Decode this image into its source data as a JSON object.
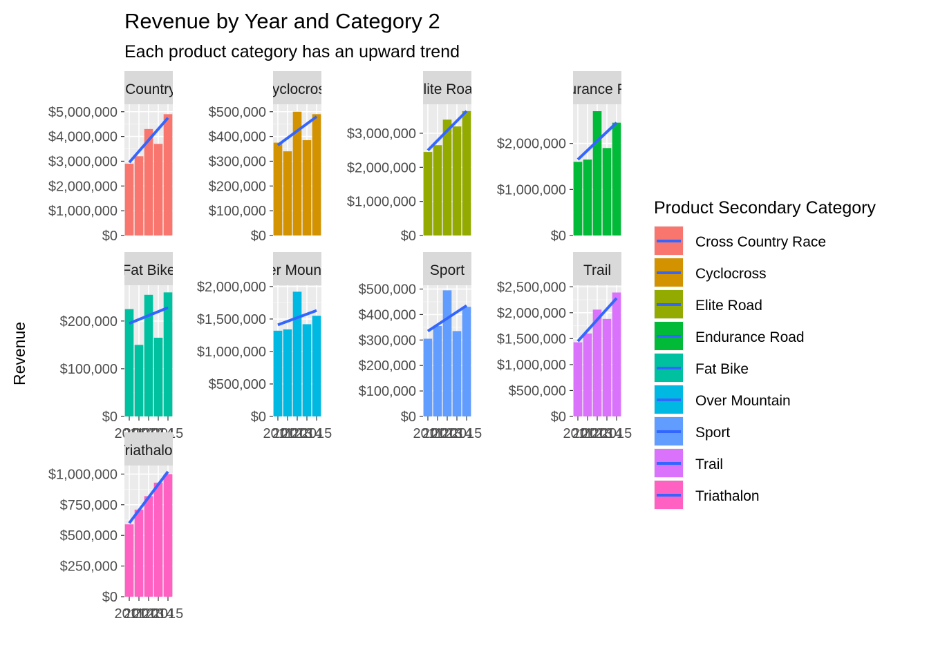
{
  "chart_data": {
    "type": "bar",
    "title": "Revenue by Year and Category 2",
    "subtitle": "Each product category has an upward trend",
    "ylabel": "Revenue",
    "xlabel": "",
    "legend_title": "Product Secondary Category",
    "legend_position": "right",
    "trend_color": "#3366FF",
    "years": [
      "2011",
      "2012",
      "2013",
      "2014",
      "2015"
    ],
    "panels": [
      {
        "strip": "Cross Country Race",
        "color": "#F8766D",
        "values": [
          2900000,
          3200000,
          4300000,
          3700000,
          4900000
        ],
        "trend": [
          2950000,
          4750000
        ],
        "ylim": [
          0,
          5300000
        ],
        "ticks": [
          0,
          1000000,
          2000000,
          3000000,
          4000000,
          5000000
        ],
        "tick_labels": [
          "$0",
          "$1,000,000",
          "$2,000,000",
          "$3,000,000",
          "$4,000,000",
          "$5,000,000"
        ]
      },
      {
        "strip": "Cyclocross",
        "color": "#D39200",
        "values": [
          375000,
          340000,
          500000,
          385000,
          490000
        ],
        "trend": [
          365000,
          480000
        ],
        "ylim": [
          0,
          530000
        ],
        "ticks": [
          0,
          100000,
          200000,
          300000,
          400000,
          500000
        ],
        "tick_labels": [
          "$0",
          "$100,000",
          "$200,000",
          "$300,000",
          "$400,000",
          "$500,000"
        ]
      },
      {
        "strip": "Elite Road",
        "color": "#93AA00",
        "values": [
          2450000,
          2650000,
          3400000,
          3200000,
          3650000
        ],
        "trend": [
          2500000,
          3650000
        ],
        "ylim": [
          0,
          3850000
        ],
        "ticks": [
          0,
          1000000,
          2000000,
          3000000
        ],
        "tick_labels": [
          "$0",
          "$1,000,000",
          "$2,000,000",
          "$3,000,000"
        ]
      },
      {
        "strip": "Endurance Road",
        "color": "#00BA38",
        "values": [
          1600000,
          1650000,
          2700000,
          1900000,
          2450000
        ],
        "trend": [
          1650000,
          2450000
        ],
        "ylim": [
          0,
          2850000
        ],
        "ticks": [
          0,
          1000000,
          2000000
        ],
        "tick_labels": [
          "$0",
          "$1,000,000",
          "$2,000,000"
        ]
      },
      {
        "strip": "Fat Bike",
        "color": "#00C19F",
        "values": [
          225000,
          150000,
          255000,
          165000,
          260000
        ],
        "trend": [
          195000,
          228000
        ],
        "ylim": [
          0,
          275000
        ],
        "ticks": [
          0,
          100000,
          200000
        ],
        "tick_labels": [
          "$0",
          "$100,000",
          "$200,000"
        ]
      },
      {
        "strip": "Over Mountain",
        "color": "#00B9E3",
        "values": [
          1320000,
          1340000,
          1920000,
          1420000,
          1550000
        ],
        "trend": [
          1410000,
          1630000
        ],
        "ylim": [
          0,
          2020000
        ],
        "ticks": [
          0,
          500000,
          1000000,
          1500000,
          2000000
        ],
        "tick_labels": [
          "$0",
          "$500,000",
          "$1,000,000",
          "$1,500,000",
          "$2,000,000"
        ]
      },
      {
        "strip": "Sport",
        "color": "#619CFF",
        "values": [
          305000,
          355000,
          495000,
          335000,
          430000
        ],
        "trend": [
          335000,
          435000
        ],
        "ylim": [
          0,
          515000
        ],
        "ticks": [
          0,
          100000,
          200000,
          300000,
          400000,
          500000
        ],
        "tick_labels": [
          "$0",
          "$100,000",
          "$200,000",
          "$300,000",
          "$400,000",
          "$500,000"
        ]
      },
      {
        "strip": "Trail",
        "color": "#DB72FB",
        "values": [
          1430000,
          1600000,
          2060000,
          1880000,
          2390000
        ],
        "trend": [
          1450000,
          2280000
        ],
        "ylim": [
          0,
          2530000
        ],
        "ticks": [
          0,
          500000,
          1000000,
          1500000,
          2000000,
          2500000
        ],
        "tick_labels": [
          "$0",
          "$500,000",
          "$1,000,000",
          "$1,500,000",
          "$2,000,000",
          "$2,500,000"
        ]
      },
      {
        "strip": "Triathalon",
        "color": "#FF61C3",
        "values": [
          590000,
          710000,
          820000,
          930000,
          1000000
        ],
        "trend": [
          600000,
          1020000
        ],
        "ylim": [
          0,
          1070000
        ],
        "ticks": [
          0,
          250000,
          500000,
          750000,
          1000000
        ],
        "tick_labels": [
          "$0",
          "$250,000",
          "$500,000",
          "$750,000",
          "$1,000,000"
        ]
      }
    ]
  }
}
